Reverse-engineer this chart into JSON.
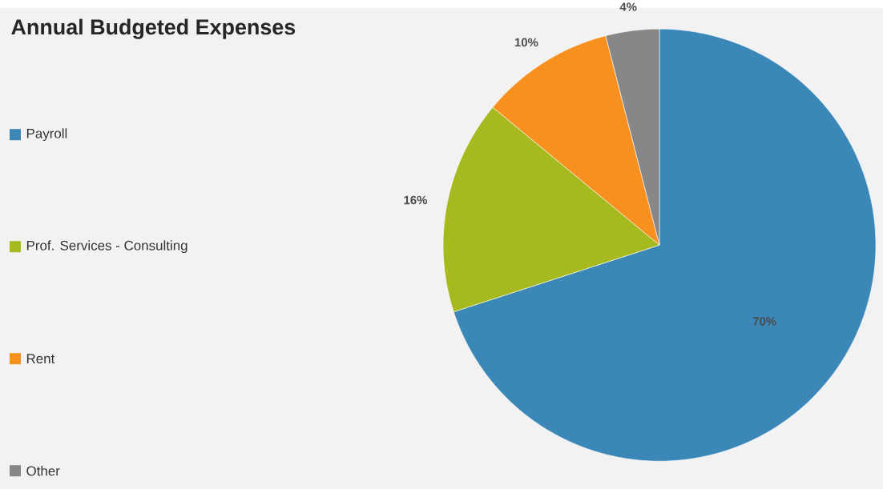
{
  "chart_data": {
    "type": "pie",
    "title": "Annual Budgeted Expenses",
    "categories": [
      "Payroll",
      "Prof. Services - Consulting",
      "Rent",
      "Other"
    ],
    "values": [
      70,
      16,
      10,
      4
    ],
    "colors": [
      "#3a87b8",
      "#a6b91e",
      "#f7901e",
      "#878787"
    ],
    "value_labels": [
      "70%",
      "16%",
      "10%",
      "4%"
    ],
    "legend": "left"
  }
}
